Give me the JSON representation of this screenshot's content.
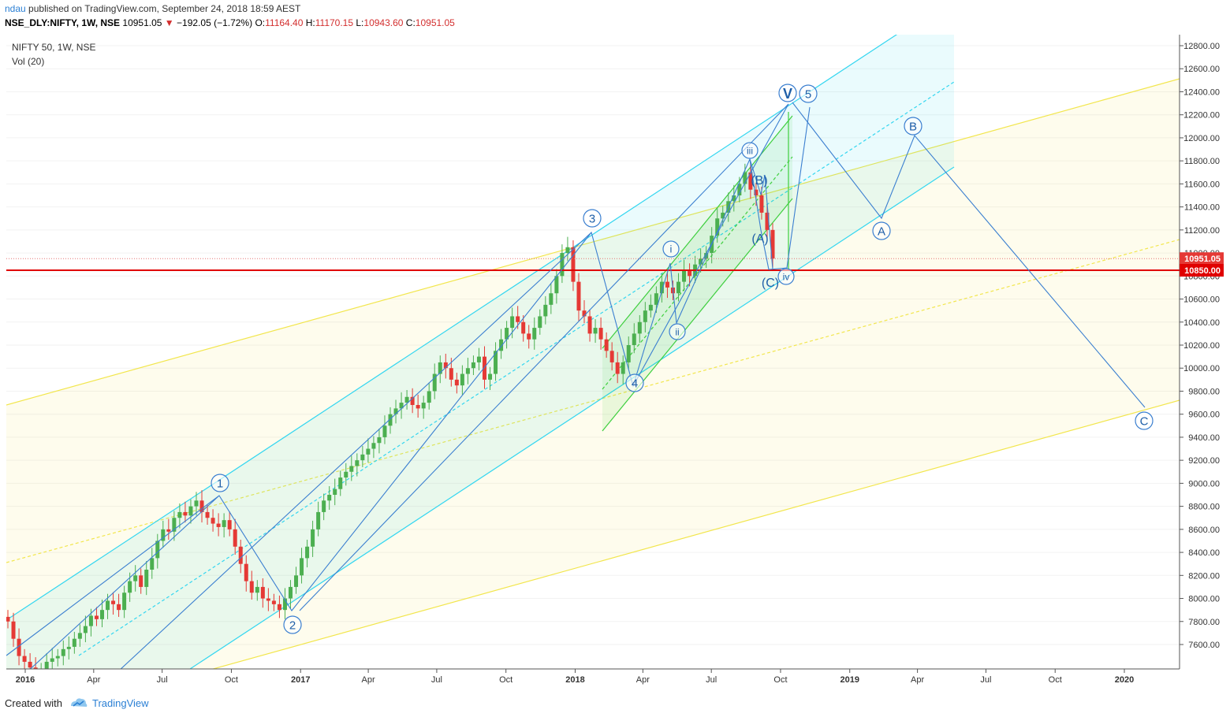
{
  "header": {
    "user": "ndau",
    "published_text": "published on TradingView.com, September 24, 2018 18:59 AEST"
  },
  "quote": {
    "symbol": "NSE_DLY:NIFTY, 1W, NSE",
    "last": "10951.05",
    "change": "−192.05 (−1.72%)",
    "open_label": "O:",
    "open": "11164.40",
    "high_label": "H:",
    "high": "11170.15",
    "low_label": "L:",
    "low": "10943.60",
    "close_label": "C:",
    "close": "10951.05"
  },
  "legend": {
    "title": "NIFTY 50, 1W, NSE",
    "volume": "Vol (20)"
  },
  "footer": {
    "created_with": "Created with",
    "brand": "TradingView"
  },
  "colors": {
    "up": "#4caf50",
    "down": "#e53935",
    "cyan_channel": "#33d6f0",
    "yellow_channel": "#f2e64d",
    "green_channel": "#3ecf3e",
    "wave_line": "#3b7fd0",
    "support_line": "#e00000"
  },
  "chart_data": {
    "type": "candlestick",
    "timeframe": "1W",
    "x_axis": {
      "ticks": [
        {
          "label": "2016",
          "date": "2016-01-01",
          "bold": true
        },
        {
          "label": "Apr",
          "date": "2016-04-01"
        },
        {
          "label": "Jul",
          "date": "2016-07-01"
        },
        {
          "label": "Oct",
          "date": "2016-10-01"
        },
        {
          "label": "2017",
          "date": "2017-01-01",
          "bold": true
        },
        {
          "label": "Apr",
          "date": "2017-04-01"
        },
        {
          "label": "Jul",
          "date": "2017-07-01"
        },
        {
          "label": "Oct",
          "date": "2017-10-01"
        },
        {
          "label": "2018",
          "date": "2018-01-01",
          "bold": true
        },
        {
          "label": "Apr",
          "date": "2018-04-01"
        },
        {
          "label": "Jul",
          "date": "2018-07-01"
        },
        {
          "label": "Oct",
          "date": "2018-10-01"
        },
        {
          "label": "2019",
          "date": "2019-01-01",
          "bold": true
        },
        {
          "label": "Apr",
          "date": "2019-04-01"
        },
        {
          "label": "Jul",
          "date": "2019-07-01"
        },
        {
          "label": "Oct",
          "date": "2019-10-01"
        },
        {
          "label": "2020",
          "date": "2020-01-01",
          "bold": true
        }
      ]
    },
    "y_axis": {
      "range": [
        7400,
        12900
      ],
      "ticks": [
        "7600.00",
        "7800.00",
        "8000.00",
        "8200.00",
        "8400.00",
        "8600.00",
        "8800.00",
        "9000.00",
        "9200.00",
        "9400.00",
        "9600.00",
        "9800.00",
        "10000.00",
        "10200.00",
        "10400.00",
        "10600.00",
        "10800.00",
        "11000.00",
        "11200.00",
        "11400.00",
        "11600.00",
        "11800.00",
        "12000.00",
        "12200.00",
        "12400.00",
        "12600.00",
        "12800.00"
      ]
    },
    "price_labels": [
      {
        "value": 10951.05,
        "text": "10951.05",
        "kind": "last"
      },
      {
        "value": 10850,
        "text": "10850.00",
        "kind": "support"
      }
    ],
    "candles_close": [
      7800,
      7650,
      7500,
      7450,
      7400,
      7350,
      7380,
      7450,
      7480,
      7500,
      7560,
      7580,
      7650,
      7700,
      7760,
      7850,
      7820,
      7900,
      7980,
      7950,
      7900,
      8050,
      8150,
      8200,
      8100,
      8250,
      8350,
      8500,
      8600,
      8580,
      8700,
      8750,
      8720,
      8800,
      8850,
      8750,
      8700,
      8650,
      8620,
      8680,
      8600,
      8450,
      8300,
      8150,
      8050,
      8100,
      8000,
      7980,
      7950,
      7900,
      8000,
      8100,
      8200,
      8350,
      8450,
      8600,
      8750,
      8850,
      8900,
      8950,
      9050,
      9100,
      9150,
      9200,
      9250,
      9300,
      9350,
      9400,
      9500,
      9600,
      9650,
      9700,
      9750,
      9680,
      9650,
      9700,
      9800,
      9950,
      10050,
      10000,
      9900,
      9850,
      9950,
      10000,
      10050,
      10100,
      9900,
      9950,
      10150,
      10250,
      10350,
      10450,
      10400,
      10300,
      10250,
      10350,
      10450,
      10550,
      10650,
      10800,
      11000,
      11050,
      10750,
      10500,
      10450,
      10300,
      10350,
      10250,
      10150,
      10050,
      9950,
      10050,
      10200,
      10300,
      10400,
      10500,
      10550,
      10650,
      10750,
      10700,
      10650,
      10750,
      10850,
      10800,
      10900,
      10950,
      11000,
      11150,
      11300,
      11350,
      11450,
      11500,
      11600,
      11700,
      11550,
      11500,
      11350,
      11200,
      10951
    ],
    "waves": {
      "primary": [
        {
          "label": "1",
          "date": "2016-09-05",
          "value": 8900
        },
        {
          "label": "2",
          "date": "2016-12-26",
          "value": 7900
        },
        {
          "label": "3",
          "date": "2018-01-29",
          "value": 11180
        },
        {
          "label": "4",
          "date": "2018-03-26",
          "value": 9980
        },
        {
          "label": "5",
          "date": "2018-08-27",
          "value": 11780
        }
      ],
      "minor": [
        {
          "label": "i",
          "date": "2018-05-14",
          "value": 10930
        },
        {
          "label": "ii",
          "date": "2018-06-04",
          "value": 10420
        },
        {
          "label": "iii",
          "date": "2018-08-27",
          "value": 11760
        },
        {
          "label": "iv",
          "date": "2018-10-08",
          "value": 10850
        },
        {
          "label": "5",
          "date": "2018-10-22",
          "value": 12260
        }
      ],
      "correction_abc_small": [
        {
          "label": "(A)",
          "date": "2018-09-10",
          "value": 11300
        },
        {
          "label": "(B)",
          "date": "2018-09-03",
          "value": 11600
        },
        {
          "label": "(C)",
          "date": "2018-09-24",
          "value": 10850
        }
      ],
      "projection": [
        {
          "label": "V",
          "date": "2018-10-08",
          "value": 12280
        },
        {
          "label": "A",
          "date": "2019-03-01",
          "value": 11320
        },
        {
          "label": "B",
          "date": "2019-04-01",
          "value": 11980
        },
        {
          "label": "C",
          "date": "2020-01-10",
          "value": 9660
        }
      ]
    },
    "support_level": 10850
  }
}
